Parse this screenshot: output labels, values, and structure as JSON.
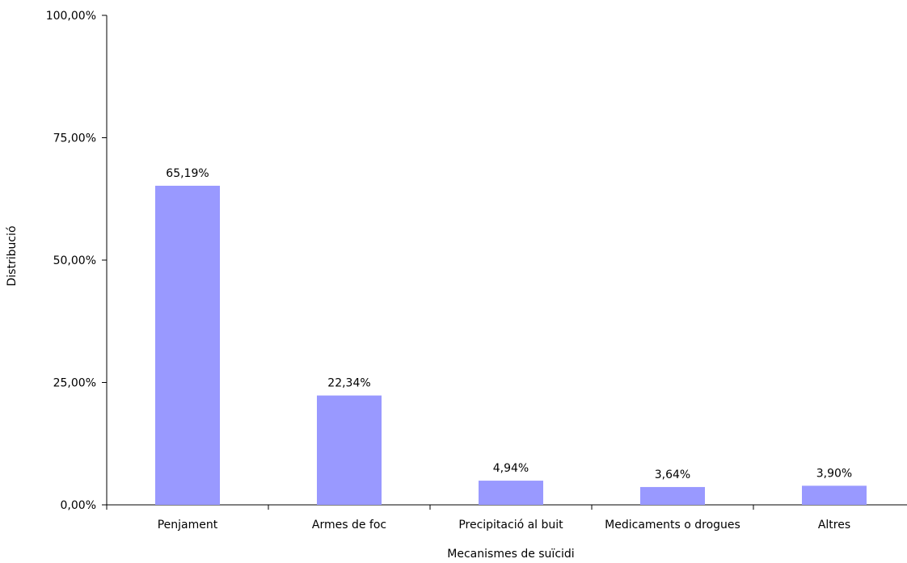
{
  "chart_data": {
    "type": "bar",
    "categories": [
      "Penjament",
      "Armes de foc",
      "Precipitació al buit",
      "Medicaments o drogues",
      "Altres"
    ],
    "values": [
      65.19,
      22.34,
      4.94,
      3.64,
      3.9
    ],
    "data_labels": [
      "65,19%",
      "22,34%",
      "4,94%",
      "3,64%",
      "3,90%"
    ],
    "xlabel": "Mecanismes de suïcidi",
    "ylabel": "Distribució",
    "ylim": [
      0,
      100
    ],
    "yticks": [
      0,
      25,
      50,
      75,
      100
    ],
    "ytick_labels": [
      "0,00%",
      "25,00%",
      "50,00%",
      "75,00%",
      "100,00%"
    ],
    "grid": false,
    "bar_color": "#9999ff"
  }
}
